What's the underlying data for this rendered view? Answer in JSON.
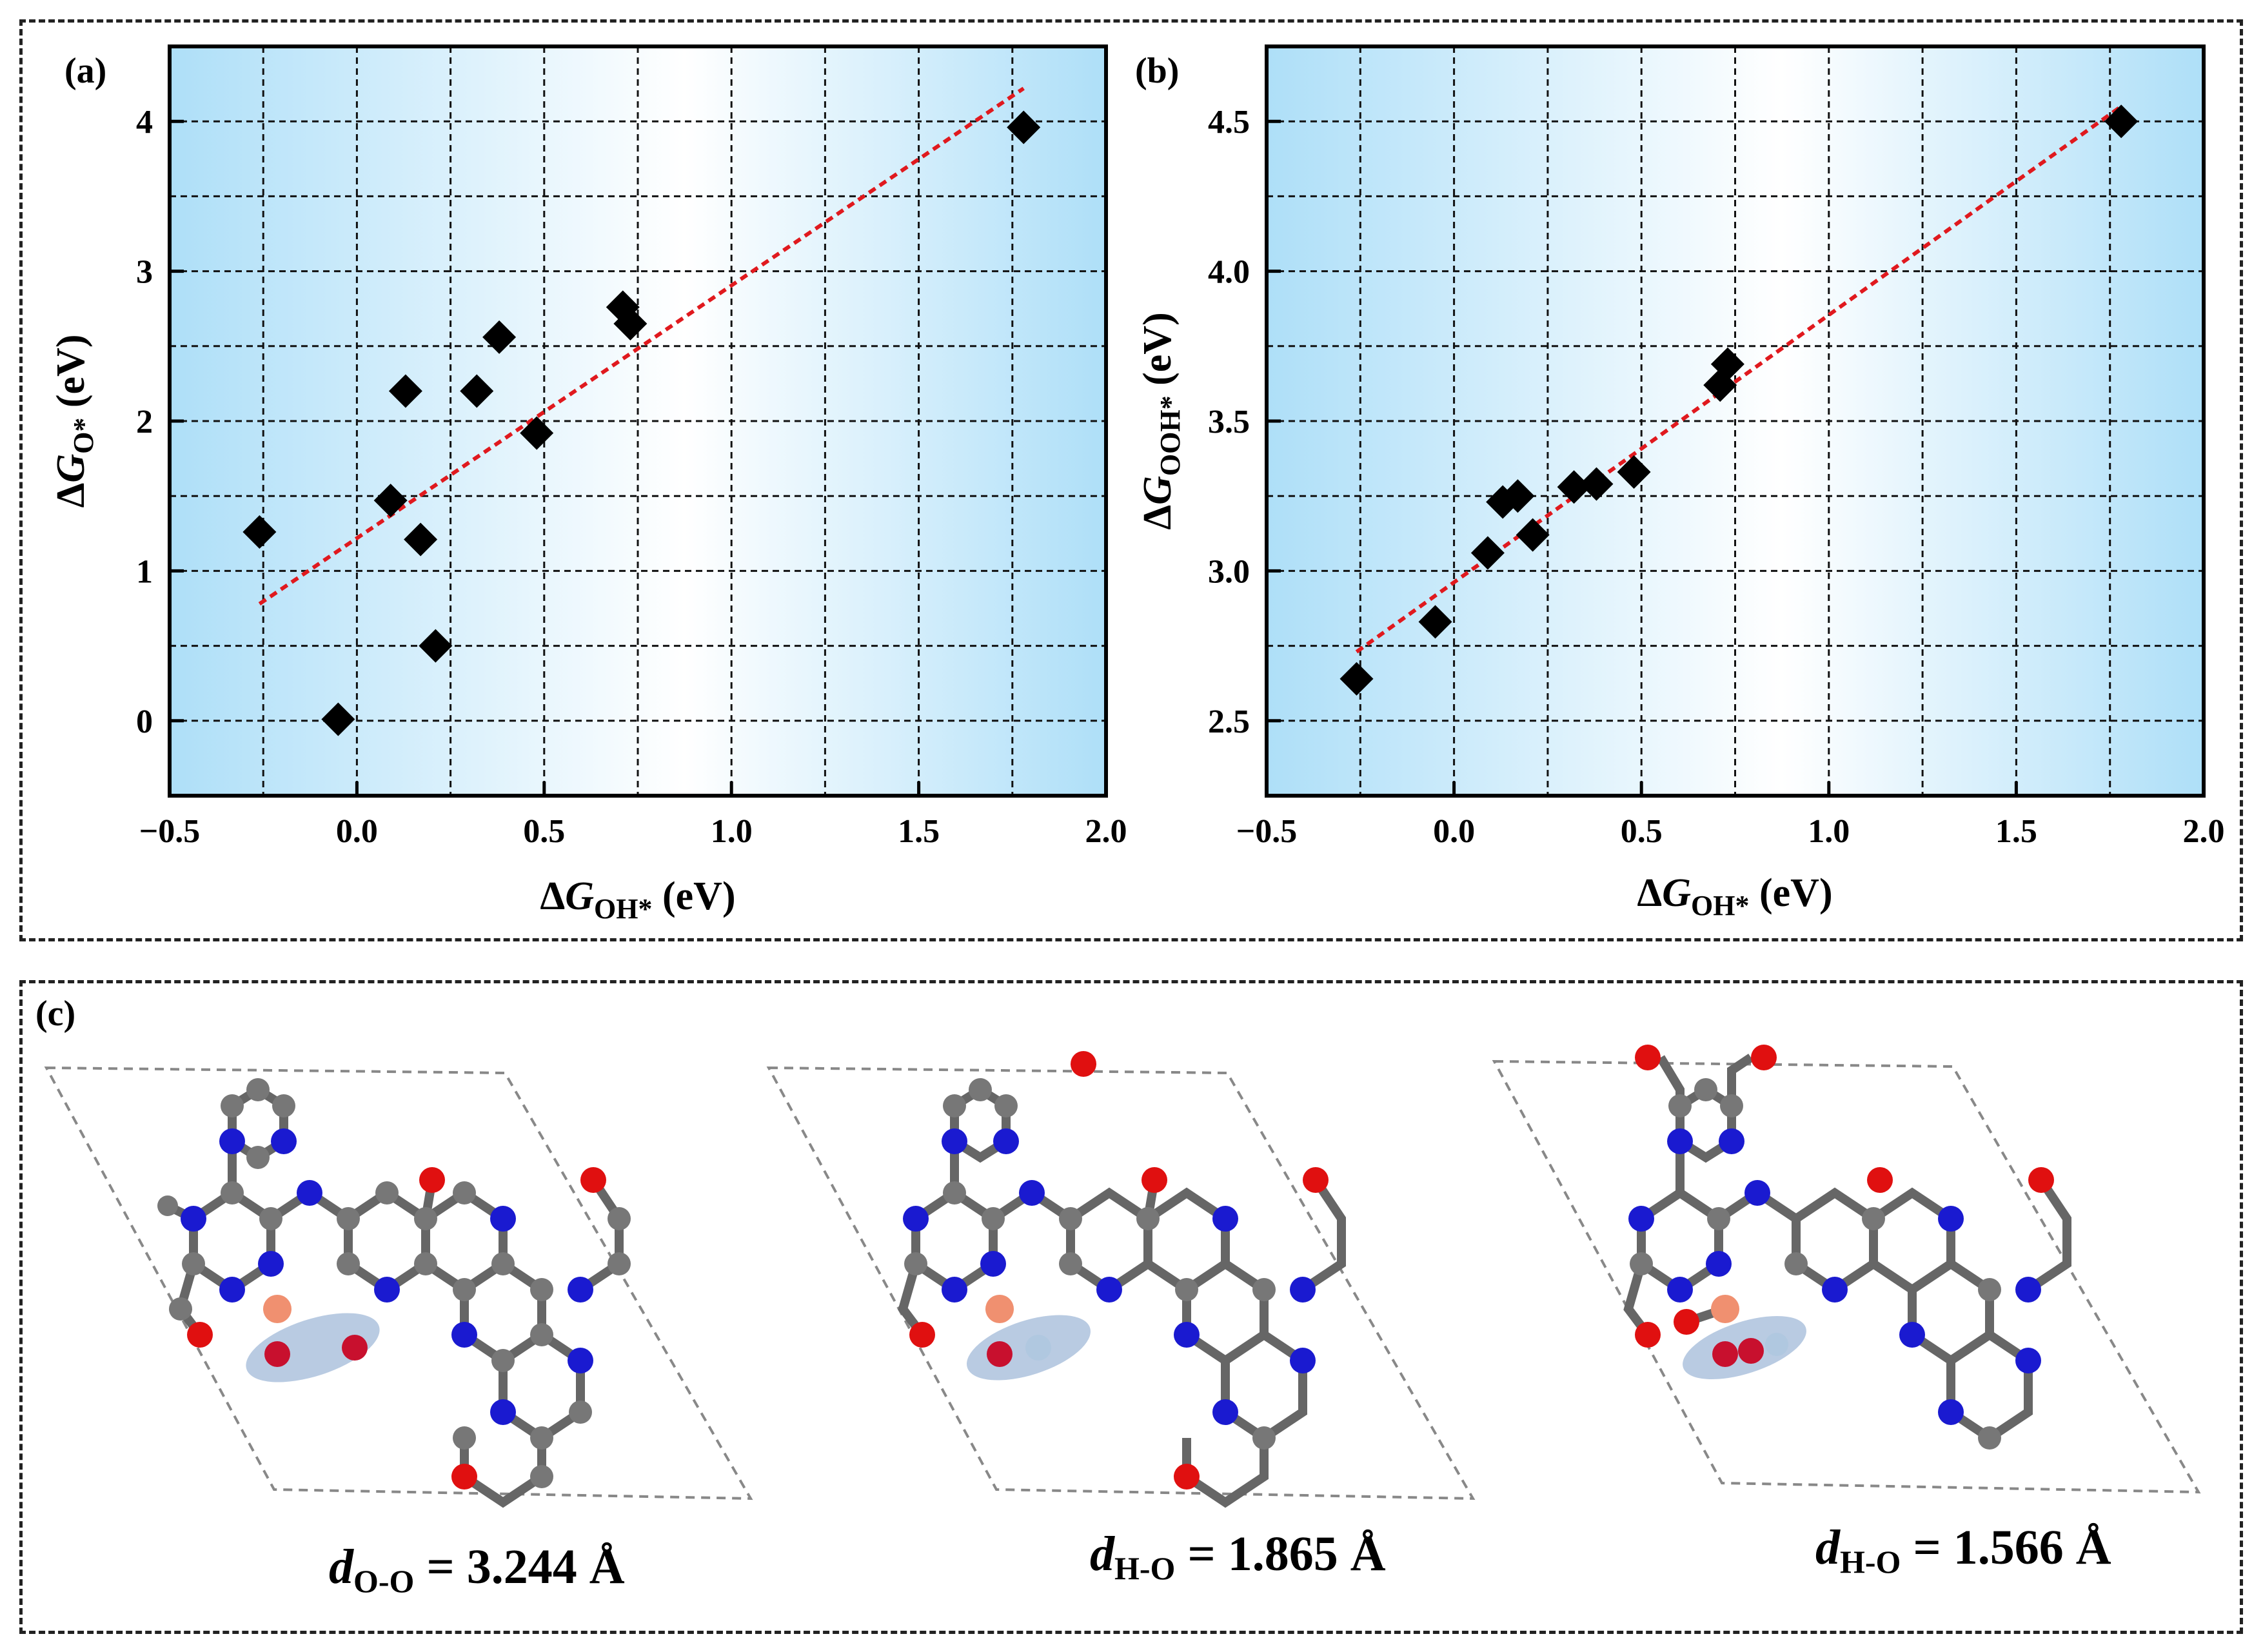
{
  "panels": {
    "a": {
      "label": "(a)",
      "y_var": "G",
      "y_sub": "O*",
      "y_unit": "(eV)",
      "x_var": "G",
      "x_sub": "OH*",
      "x_unit": "(eV)"
    },
    "b": {
      "label": "(b)",
      "y_var": "G",
      "y_sub": "OOH*",
      "y_unit": "(eV)",
      "x_var": "G",
      "x_sub": "OH*",
      "x_unit": "(eV)"
    },
    "c": {
      "label": "(c)",
      "structures": [
        {
          "var": "d",
          "sub": "O-O",
          "value": "= 3.244 Å"
        },
        {
          "var": "d",
          "sub": "H-O",
          "value": "= 1.865 Å"
        },
        {
          "var": "d",
          "sub": "H-O",
          "value": "= 1.566 Å"
        }
      ]
    }
  },
  "chart_data": [
    {
      "type": "scatter",
      "title": "(a)",
      "xlabel": "ΔG_OH* (eV)",
      "ylabel": "ΔG_O* (eV)",
      "xlim": [
        -0.5,
        2.0
      ],
      "ylim": [
        -0.5,
        4.5
      ],
      "xticks": [
        -0.5,
        0.0,
        0.5,
        1.0,
        1.5,
        2.0
      ],
      "xtick_labels": [
        "−0.5",
        "0.0",
        "0.5",
        "1.0",
        "1.5",
        "2.0"
      ],
      "yticks": [
        0,
        1,
        2,
        3,
        4
      ],
      "ytick_labels": [
        "0",
        "1",
        "2",
        "3",
        "4"
      ],
      "grid": true,
      "x": [
        -0.26,
        -0.05,
        0.09,
        0.13,
        0.17,
        0.21,
        0.32,
        0.38,
        0.48,
        0.71,
        0.73,
        1.78
      ],
      "y": [
        1.26,
        0.01,
        1.47,
        2.2,
        1.21,
        0.5,
        2.2,
        2.56,
        1.92,
        2.76,
        2.65,
        3.96
      ],
      "fit": {
        "x": [
          -0.26,
          1.78
        ],
        "y": [
          0.78,
          4.22
        ],
        "style": "dashed",
        "color": "#e0191e"
      },
      "marker": "diamond"
    },
    {
      "type": "scatter",
      "title": "(b)",
      "xlabel": "ΔG_OH* (eV)",
      "ylabel": "ΔG_OOH* (eV)",
      "xlim": [
        -0.5,
        2.0
      ],
      "ylim": [
        2.25,
        4.75
      ],
      "xticks": [
        -0.5,
        0.0,
        0.5,
        1.0,
        1.5,
        2.0
      ],
      "xtick_labels": [
        "−0.5",
        "0.0",
        "0.5",
        "1.0",
        "1.5",
        "2.0"
      ],
      "yticks": [
        2.5,
        3.0,
        3.5,
        4.0,
        4.5
      ],
      "ytick_labels": [
        "2.5",
        "3.0",
        "3.5",
        "4.0",
        "4.5"
      ],
      "grid": true,
      "x": [
        -0.26,
        -0.05,
        0.09,
        0.13,
        0.17,
        0.21,
        0.32,
        0.38,
        0.48,
        0.71,
        0.73,
        1.78
      ],
      "y": [
        2.64,
        2.83,
        3.06,
        3.23,
        3.25,
        3.12,
        3.28,
        3.29,
        3.33,
        3.62,
        3.69,
        4.5
      ],
      "fit": {
        "x": [
          -0.26,
          1.78
        ],
        "y": [
          2.73,
          4.55
        ],
        "style": "dashed",
        "color": "#e0191e"
      },
      "marker": "diamond"
    }
  ]
}
